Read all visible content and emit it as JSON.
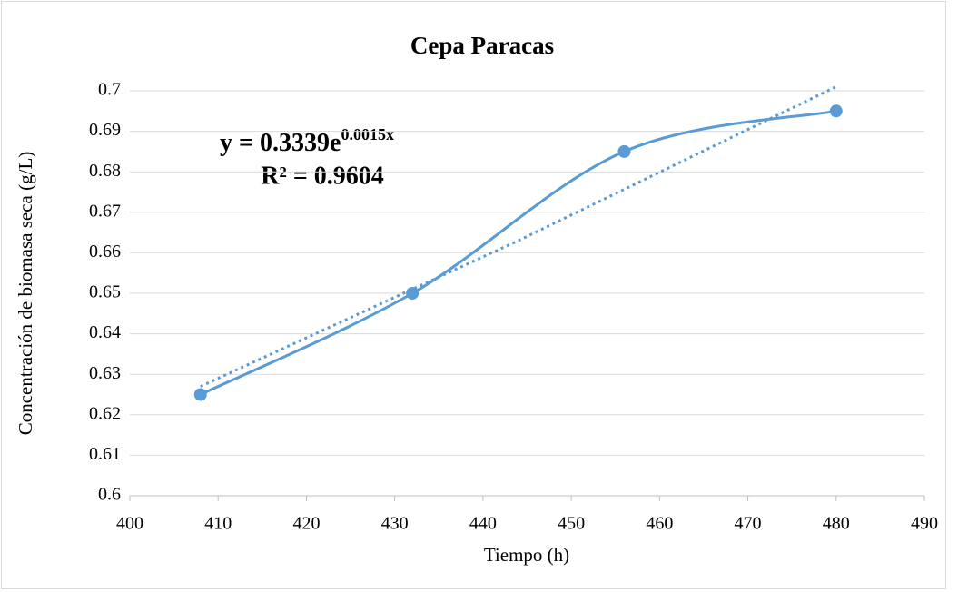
{
  "chart_data": {
    "type": "scatter",
    "title": "Cepa Paracas",
    "x_label": "Tiempo (h)",
    "y_label": "Concentración de biomasa seca (g/L)",
    "x": [
      408,
      432,
      456,
      480
    ],
    "values": [
      0.625,
      0.65,
      0.685,
      0.695
    ],
    "color": "#5b9bd5",
    "smooth": true,
    "trendline": {
      "x": [
        408,
        444,
        480
      ],
      "values": [
        0.627,
        0.663,
        0.701
      ],
      "color": "#5b9bd5",
      "dotted": true
    },
    "annotation": {
      "equation": "y = 0.3339e",
      "exponent": "0.0015x",
      "r_squared": "R² = 0.9604"
    },
    "xlim": [
      400,
      490
    ],
    "xticks": [
      400,
      410,
      420,
      430,
      440,
      450,
      460,
      470,
      480,
      490
    ],
    "ylim": [
      0.6,
      0.7
    ],
    "yticks": [
      0.6,
      0.61,
      0.62,
      0.63,
      0.64,
      0.65,
      0.66,
      0.67,
      0.68,
      0.69,
      0.7
    ],
    "grid": true
  }
}
